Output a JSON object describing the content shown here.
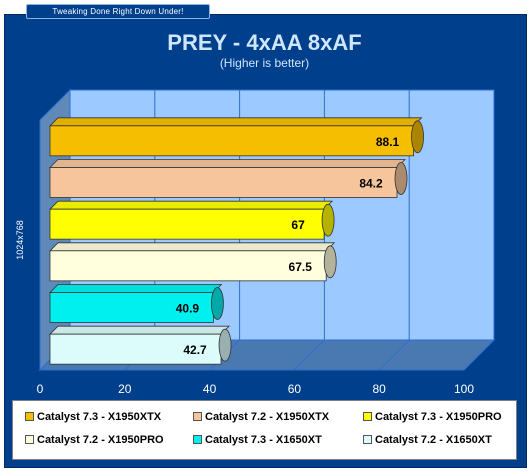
{
  "banner": "Tweaking Done Right Down Under!",
  "chart_data": {
    "type": "bar",
    "orientation": "horizontal",
    "title": "PREY - 4xAA 8xAF",
    "subtitle": "(Higher is better)",
    "ylabel": "1024x768",
    "xlim": [
      0,
      100
    ],
    "xticks": [
      "0",
      "20",
      "40",
      "60",
      "80",
      "100"
    ],
    "grid": true,
    "legend_position": "bottom",
    "series": [
      {
        "name": "Catalyst 7.3 - X1950XTX",
        "label": "88.1",
        "value": 88.1,
        "color": "#f5be00"
      },
      {
        "name": "Catalyst 7.2 - X1950XTX",
        "label": "84.2",
        "value": 84.2,
        "color": "#f6c59b"
      },
      {
        "name": "Catalyst 7.3 - X1950PRO",
        "label": "67",
        "value": 67,
        "color": "#ffff00"
      },
      {
        "name": "Catalyst 7.2 - X1950PRO",
        "label": "67.5",
        "value": 67.5,
        "color": "#ffffde"
      },
      {
        "name": "Catalyst 7.3 - X1650XT",
        "label": "40.9",
        "value": 40.9,
        "color": "#00f0f0"
      },
      {
        "name": "Catalyst 7.2 - X1650XT",
        "label": "42.7",
        "value": 42.7,
        "color": "#dcfcfc"
      }
    ]
  }
}
